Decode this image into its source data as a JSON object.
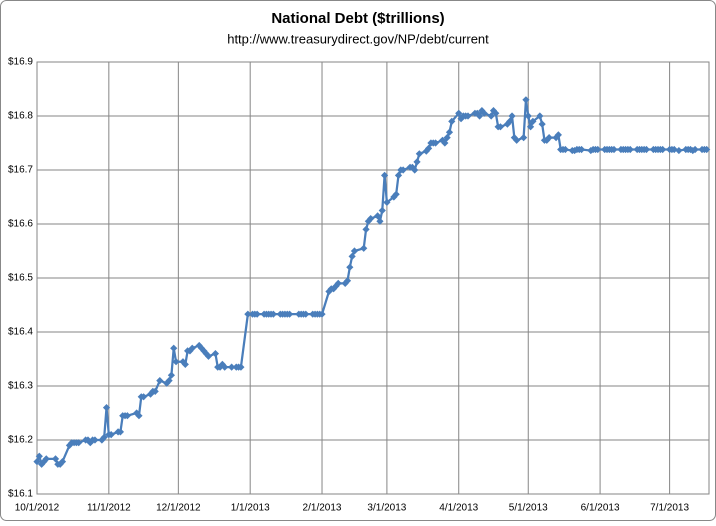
{
  "chart_data": {
    "type": "line",
    "title": "National Debt ($trillions)",
    "subtitle": "http://www.treasurydirect.gov/NP/debt/current",
    "x": [
      "2012-10-01",
      "2012-10-02",
      "2012-10-03",
      "2012-10-04",
      "2012-10-05",
      "2012-10-09",
      "2012-10-10",
      "2012-10-11",
      "2012-10-12",
      "2012-10-15",
      "2012-10-16",
      "2012-10-17",
      "2012-10-18",
      "2012-10-19",
      "2012-10-22",
      "2012-10-23",
      "2012-10-24",
      "2012-10-25",
      "2012-10-26",
      "2012-10-29",
      "2012-10-30",
      "2012-10-31",
      "2012-11-01",
      "2012-11-02",
      "2012-11-05",
      "2012-11-06",
      "2012-11-07",
      "2012-11-08",
      "2012-11-09",
      "2012-11-13",
      "2012-11-14",
      "2012-11-15",
      "2012-11-16",
      "2012-11-19",
      "2012-11-20",
      "2012-11-21",
      "2012-11-23",
      "2012-11-26",
      "2012-11-27",
      "2012-11-28",
      "2012-11-29",
      "2012-11-30",
      "2012-12-03",
      "2012-12-04",
      "2012-12-05",
      "2012-12-06",
      "2012-12-07",
      "2012-12-10",
      "2012-12-11",
      "2012-12-12",
      "2012-12-13",
      "2012-12-14",
      "2012-12-17",
      "2012-12-18",
      "2012-12-19",
      "2012-12-20",
      "2012-12-21",
      "2012-12-24",
      "2012-12-26",
      "2012-12-27",
      "2012-12-28",
      "2012-12-31",
      "2013-01-02",
      "2013-01-03",
      "2013-01-04",
      "2013-01-07",
      "2013-01-08",
      "2013-01-09",
      "2013-01-10",
      "2013-01-11",
      "2013-01-14",
      "2013-01-15",
      "2013-01-16",
      "2013-01-17",
      "2013-01-18",
      "2013-01-22",
      "2013-01-23",
      "2013-01-24",
      "2013-01-25",
      "2013-01-28",
      "2013-01-29",
      "2013-01-30",
      "2013-01-31",
      "2013-02-01",
      "2013-02-04",
      "2013-02-05",
      "2013-02-06",
      "2013-02-07",
      "2013-02-08",
      "2013-02-11",
      "2013-02-12",
      "2013-02-13",
      "2013-02-14",
      "2013-02-15",
      "2013-02-19",
      "2013-02-20",
      "2013-02-21",
      "2013-02-22",
      "2013-02-25",
      "2013-02-26",
      "2013-02-27",
      "2013-02-28",
      "2013-03-01",
      "2013-03-04",
      "2013-03-05",
      "2013-03-06",
      "2013-03-07",
      "2013-03-08",
      "2013-03-11",
      "2013-03-12",
      "2013-03-13",
      "2013-03-14",
      "2013-03-15",
      "2013-03-18",
      "2013-03-19",
      "2013-03-20",
      "2013-03-21",
      "2013-03-22",
      "2013-03-25",
      "2013-03-26",
      "2013-03-27",
      "2013-03-28",
      "2013-03-29",
      "2013-04-01",
      "2013-04-02",
      "2013-04-03",
      "2013-04-04",
      "2013-04-05",
      "2013-04-08",
      "2013-04-09",
      "2013-04-10",
      "2013-04-11",
      "2013-04-12",
      "2013-04-15",
      "2013-04-16",
      "2013-04-17",
      "2013-04-18",
      "2013-04-19",
      "2013-04-22",
      "2013-04-23",
      "2013-04-24",
      "2013-04-25",
      "2013-04-26",
      "2013-04-29",
      "2013-04-30",
      "2013-05-01",
      "2013-05-02",
      "2013-05-03",
      "2013-05-06",
      "2013-05-07",
      "2013-05-08",
      "2013-05-09",
      "2013-05-10",
      "2013-05-13",
      "2013-05-14",
      "2013-05-15",
      "2013-05-16",
      "2013-05-17",
      "2013-05-20",
      "2013-05-21",
      "2013-05-22",
      "2013-05-23",
      "2013-05-24",
      "2013-05-28",
      "2013-05-29",
      "2013-05-30",
      "2013-05-31",
      "2013-06-03",
      "2013-06-04",
      "2013-06-05",
      "2013-06-06",
      "2013-06-07",
      "2013-06-10",
      "2013-06-11",
      "2013-06-12",
      "2013-06-13",
      "2013-06-14",
      "2013-06-17",
      "2013-06-18",
      "2013-06-19",
      "2013-06-20",
      "2013-06-21",
      "2013-06-24",
      "2013-06-25",
      "2013-06-26",
      "2013-06-27",
      "2013-06-28",
      "2013-07-01",
      "2013-07-02",
      "2013-07-03",
      "2013-07-05",
      "2013-07-08",
      "2013-07-09",
      "2013-07-10",
      "2013-07-11",
      "2013-07-12",
      "2013-07-15",
      "2013-07-16",
      "2013-07-17"
    ],
    "series": [
      {
        "color": "#4a7ebb",
        "values": [
          16.16,
          16.17,
          16.155,
          16.16,
          16.165,
          16.165,
          16.155,
          16.155,
          16.16,
          16.19,
          16.195,
          16.195,
          16.195,
          16.195,
          16.2,
          16.2,
          16.195,
          16.2,
          16.2,
          16.2,
          16.205,
          16.26,
          16.21,
          16.21,
          16.215,
          16.215,
          16.245,
          16.245,
          16.245,
          16.25,
          16.245,
          16.28,
          16.28,
          16.285,
          16.29,
          16.29,
          16.31,
          16.305,
          16.31,
          16.32,
          16.37,
          16.345,
          16.345,
          16.34,
          16.365,
          16.365,
          16.37,
          16.375,
          16.37,
          16.365,
          16.36,
          16.355,
          16.36,
          16.335,
          16.335,
          16.34,
          16.335,
          16.335,
          16.335,
          16.335,
          16.335,
          16.433,
          16.433,
          16.433,
          16.433,
          16.433,
          16.433,
          16.433,
          16.433,
          16.433,
          16.433,
          16.433,
          16.433,
          16.433,
          16.433,
          16.433,
          16.433,
          16.433,
          16.433,
          16.433,
          16.433,
          16.433,
          16.433,
          16.433,
          16.475,
          16.48,
          16.48,
          16.485,
          16.49,
          16.49,
          16.495,
          16.52,
          16.54,
          16.55,
          16.555,
          16.59,
          16.605,
          16.61,
          16.615,
          16.605,
          16.625,
          16.69,
          16.64,
          16.65,
          16.655,
          16.69,
          16.7,
          16.7,
          16.705,
          16.705,
          16.7,
          16.715,
          16.73,
          16.735,
          16.74,
          16.75,
          16.75,
          16.75,
          16.755,
          16.75,
          16.76,
          16.77,
          16.79,
          16.805,
          16.795,
          16.8,
          16.8,
          16.8,
          16.805,
          16.805,
          16.8,
          16.81,
          16.805,
          16.8,
          16.81,
          16.805,
          16.78,
          16.78,
          16.785,
          16.79,
          16.8,
          16.76,
          16.755,
          16.76,
          16.83,
          16.8,
          16.78,
          16.79,
          16.8,
          16.785,
          16.755,
          16.755,
          16.76,
          16.76,
          16.765,
          16.738,
          16.738,
          16.738,
          16.736,
          16.736,
          16.738,
          16.738,
          16.738,
          16.736,
          16.738,
          16.738,
          16.738,
          16.738,
          16.738,
          16.738,
          16.738,
          16.738,
          16.738,
          16.738,
          16.738,
          16.738,
          16.738,
          16.738,
          16.738,
          16.738,
          16.738,
          16.738,
          16.738,
          16.738,
          16.738,
          16.738,
          16.738,
          16.738,
          16.738,
          16.738,
          16.736,
          16.738,
          16.738,
          16.738,
          16.736,
          16.738,
          16.738,
          16.738,
          16.738
        ]
      }
    ],
    "xlim": [
      "2012-10-01",
      "2013-07-18"
    ],
    "xticks": [
      {
        "value": "2012-10-01",
        "label": "10/1/2012"
      },
      {
        "value": "2012-11-01",
        "label": "11/1/2012"
      },
      {
        "value": "2012-12-01",
        "label": "12/1/2012"
      },
      {
        "value": "2013-01-01",
        "label": "1/1/2013"
      },
      {
        "value": "2013-02-01",
        "label": "2/1/2013"
      },
      {
        "value": "2013-03-01",
        "label": "3/1/2013"
      },
      {
        "value": "2013-04-01",
        "label": "4/1/2013"
      },
      {
        "value": "2013-05-01",
        "label": "5/1/2013"
      },
      {
        "value": "2013-06-01",
        "label": "6/1/2013"
      },
      {
        "value": "2013-07-01",
        "label": "7/1/2013"
      }
    ],
    "ylim": [
      16.1,
      16.9
    ],
    "yticks": [
      {
        "value": 16.1,
        "label": "$16.1"
      },
      {
        "value": 16.2,
        "label": "$16.2"
      },
      {
        "value": 16.3,
        "label": "$16.3"
      },
      {
        "value": 16.4,
        "label": "$16.4"
      },
      {
        "value": 16.5,
        "label": "$16.5"
      },
      {
        "value": 16.6,
        "label": "$16.6"
      },
      {
        "value": 16.7,
        "label": "$16.7"
      },
      {
        "value": 16.8,
        "label": "$16.8"
      },
      {
        "value": 16.9,
        "label": "$16.9"
      }
    ],
    "grid": true,
    "marker": "diamond"
  }
}
